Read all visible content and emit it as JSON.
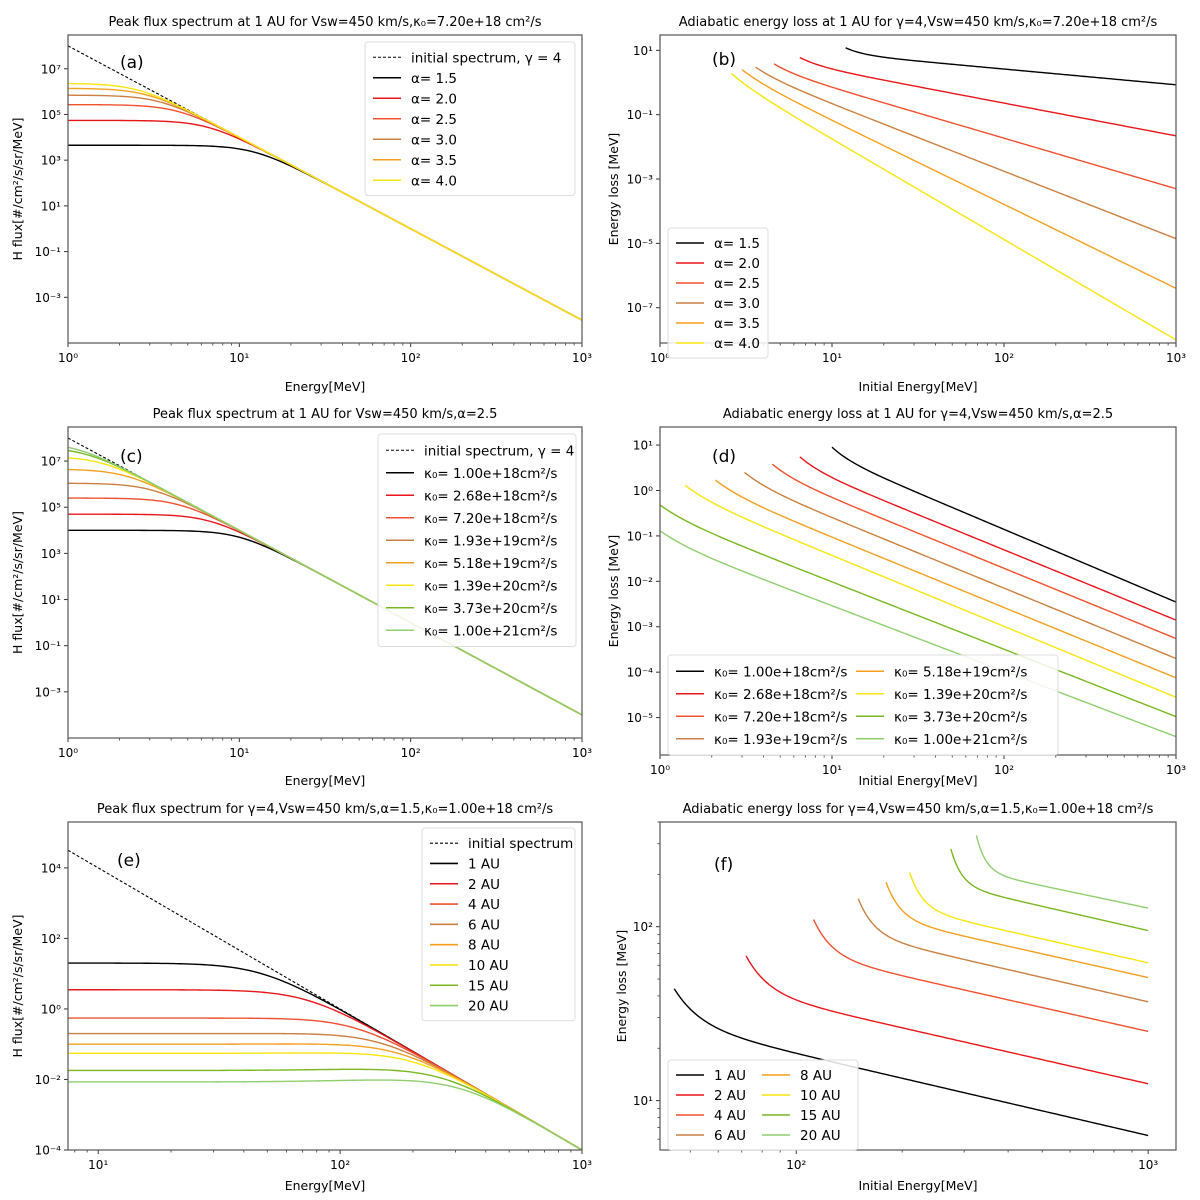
{
  "colors": {
    "initial": "#000000",
    "c1": "#000000",
    "c2": "#e8161a",
    "c3": "#f0512f",
    "c4": "#cc8040",
    "c5": "#f5a020",
    "c6": "#f7e60f",
    "c7": "#79b820",
    "c8": "#8fcf6f"
  },
  "chart_data": [
    {
      "id": "a",
      "type": "line",
      "panel_label": "(a)",
      "title": "Peak flux spectrum at 1 AU for Vsw=450 km/s,κ₀=7.20e+18 cm²/s",
      "xlabel": "Energy[MeV]",
      "ylabel": "H flux[#/cm²/s/sr/MeV]",
      "xscale": "log",
      "yscale": "log",
      "xlim": [
        1,
        1000
      ],
      "ylim": [
        1e-05,
        300000000
      ],
      "xticks": [
        "10⁰",
        "10¹",
        "10²",
        "10³"
      ],
      "yticks": [
        "10⁻³",
        "10⁻¹",
        "10¹",
        "10³",
        "10⁵",
        "10⁷"
      ],
      "legend_position": "upper-right",
      "series": [
        {
          "name": "initial spectrum, γ = 4",
          "style": "dashed",
          "color_key": "initial",
          "kind": "powerlaw",
          "A": 100000000,
          "gamma": 4
        },
        {
          "name": "α= 1.5",
          "color_key": "c1",
          "kind": "flux",
          "plateau": 4500,
          "A": 100000000,
          "gamma": 4
        },
        {
          "name": "α= 2.0",
          "color_key": "c2",
          "kind": "flux",
          "plateau": 55000,
          "A": 100000000,
          "gamma": 4
        },
        {
          "name": "α= 2.5",
          "color_key": "c3",
          "kind": "flux",
          "plateau": 270000,
          "A": 100000000,
          "gamma": 4
        },
        {
          "name": "α= 3.0",
          "color_key": "c4",
          "kind": "flux",
          "plateau": 700000,
          "A": 100000000,
          "gamma": 4
        },
        {
          "name": "α= 3.5",
          "color_key": "c5",
          "kind": "flux",
          "plateau": 1400000,
          "A": 100000000,
          "gamma": 4
        },
        {
          "name": "α= 4.0",
          "color_key": "c6",
          "kind": "flux",
          "plateau": 2300000,
          "A": 100000000,
          "gamma": 4
        }
      ]
    },
    {
      "id": "b",
      "type": "line",
      "panel_label": "(b)",
      "title": "Adiabatic energy loss at 1 AU for γ=4,Vsw=450 km/s,κ₀=7.20e+18 cm²/s",
      "xlabel": "Initial Energy[MeV]",
      "ylabel": "Energy loss [MeV]",
      "xscale": "log",
      "yscale": "log",
      "xlim": [
        1,
        1000
      ],
      "ylim": [
        8e-09,
        30
      ],
      "xticks": [
        "10⁰",
        "10¹",
        "10²",
        "10³"
      ],
      "yticks": [
        "10⁻⁷",
        "10⁻⁵",
        "10⁻³",
        "10⁻¹",
        "10¹"
      ],
      "legend_position": "lower-left",
      "series": [
        {
          "name": "α= 1.5",
          "color_key": "c1",
          "kind": "loss",
          "x0": 12,
          "y0": 12,
          "y_end": 0.85
        },
        {
          "name": "α= 2.0",
          "color_key": "c2",
          "kind": "loss",
          "x0": 6.5,
          "y0": 6,
          "y_end": 0.022
        },
        {
          "name": "α= 2.5",
          "color_key": "c3",
          "kind": "loss",
          "x0": 4.6,
          "y0": 3.8,
          "y_end": 0.0005
        },
        {
          "name": "α= 3.0",
          "color_key": "c4",
          "kind": "loss",
          "x0": 3.6,
          "y0": 3.0,
          "y_end": 1.4e-05
        },
        {
          "name": "α= 3.5",
          "color_key": "c5",
          "kind": "loss",
          "x0": 3.0,
          "y0": 2.5,
          "y_end": 4e-07
        },
        {
          "name": "α= 4.0",
          "color_key": "c6",
          "kind": "loss",
          "x0": 2.6,
          "y0": 1.9,
          "y_end": 1e-08
        }
      ]
    },
    {
      "id": "c",
      "type": "line",
      "panel_label": "(c)",
      "title": "Peak flux spectrum at 1 AU for Vsw=450 km/s,α=2.5",
      "xlabel": "Energy[MeV]",
      "ylabel": "H flux[#/cm²/s/sr/MeV]",
      "xscale": "log",
      "yscale": "log",
      "xlim": [
        1,
        1000
      ],
      "ylim": [
        1e-05,
        300000000
      ],
      "xticks": [
        "10⁰",
        "10¹",
        "10²",
        "10³"
      ],
      "yticks": [
        "10⁻³",
        "10⁻¹",
        "10¹",
        "10³",
        "10⁵",
        "10⁷"
      ],
      "legend_position": "upper-right",
      "series": [
        {
          "name": "initial spectrum, γ = 4",
          "style": "dashed",
          "color_key": "initial",
          "kind": "powerlaw",
          "A": 100000000,
          "gamma": 4
        },
        {
          "name": "κ₀= 1.00e+18cm²/s",
          "color_key": "c1",
          "kind": "flux",
          "plateau": 10000,
          "A": 100000000,
          "gamma": 4
        },
        {
          "name": "κ₀= 2.68e+18cm²/s",
          "color_key": "c2",
          "kind": "flux",
          "plateau": 50000,
          "A": 100000000,
          "gamma": 4
        },
        {
          "name": "κ₀= 7.20e+18cm²/s",
          "color_key": "c3",
          "kind": "flux",
          "plateau": 250000,
          "A": 100000000,
          "gamma": 4
        },
        {
          "name": "κ₀= 1.93e+19cm²/s",
          "color_key": "c4",
          "kind": "flux",
          "plateau": 1100000,
          "A": 100000000,
          "gamma": 4
        },
        {
          "name": "κ₀= 5.18e+19cm²/s",
          "color_key": "c5",
          "kind": "flux",
          "plateau": 4500000,
          "A": 100000000,
          "gamma": 4
        },
        {
          "name": "κ₀= 1.39e+20cm²/s",
          "color_key": "c6",
          "kind": "flux",
          "plateau": 16000000,
          "A": 100000000,
          "gamma": 4
        },
        {
          "name": "κ₀= 3.73e+20cm²/s",
          "color_key": "c7",
          "kind": "flux",
          "plateau": 40000000,
          "A": 100000000,
          "gamma": 4
        },
        {
          "name": "κ₀= 1.00e+21cm²/s",
          "color_key": "c8",
          "kind": "flux",
          "plateau": 65000000,
          "A": 100000000,
          "gamma": 4
        }
      ]
    },
    {
      "id": "d",
      "type": "line",
      "panel_label": "(d)",
      "title": "Adiabatic energy loss at 1 AU for γ=4,Vsw=450 km/s,α=2.5",
      "xlabel": "Initial Energy[MeV]",
      "ylabel": "Energy loss [MeV]",
      "xscale": "log",
      "yscale": "log",
      "xlim": [
        1,
        1000
      ],
      "ylim": [
        1.5e-06,
        25
      ],
      "xticks": [
        "10⁰",
        "10¹",
        "10²",
        "10³"
      ],
      "yticks": [
        "10⁻⁵",
        "10⁻⁴",
        "10⁻³",
        "10⁻²",
        "10⁻¹",
        "10⁰",
        "10¹"
      ],
      "legend_position": "lower-left",
      "legend_columns": 2,
      "series": [
        {
          "name": "κ₀= 1.00e+18cm²/s",
          "color_key": "c1",
          "kind": "loss",
          "x0": 10,
          "y0": 9,
          "y_end": 0.0035
        },
        {
          "name": "κ₀= 2.68e+18cm²/s",
          "color_key": "c2",
          "kind": "loss",
          "x0": 6.5,
          "y0": 5.5,
          "y_end": 0.0014
        },
        {
          "name": "κ₀= 7.20e+18cm²/s",
          "color_key": "c3",
          "kind": "loss",
          "x0": 4.5,
          "y0": 3.8,
          "y_end": 0.00055
        },
        {
          "name": "κ₀= 1.93e+19cm²/s",
          "color_key": "c4",
          "kind": "loss",
          "x0": 3.1,
          "y0": 2.5,
          "y_end": 0.0002
        },
        {
          "name": "κ₀= 5.18e+19cm²/s",
          "color_key": "c5",
          "kind": "loss",
          "x0": 2.1,
          "y0": 1.7,
          "y_end": 7.5e-05
        },
        {
          "name": "κ₀= 1.39e+20cm²/s",
          "color_key": "c6",
          "kind": "loss",
          "x0": 1.4,
          "y0": 1.3,
          "y_end": 2.8e-05
        },
        {
          "name": "κ₀= 3.73e+20cm²/s",
          "color_key": "c7",
          "kind": "loss",
          "x0": 1.0,
          "y0": 0.48,
          "y_end": 1.05e-05
        },
        {
          "name": "κ₀= 1.00e+21cm²/s",
          "color_key": "c8",
          "kind": "loss",
          "x0": 1.0,
          "y0": 0.13,
          "y_end": 3.8e-06
        }
      ]
    },
    {
      "id": "e",
      "type": "line",
      "panel_label": "(e)",
      "title": "Peak flux spectrum for γ=4,Vsw=450 km/s,α=1.5,κ₀=1.00e+18 cm²/s",
      "xlabel": "Energy[MeV]",
      "ylabel": "H flux[#/cm²/s/sr/MeV]",
      "xscale": "log",
      "yscale": "log",
      "xlim": [
        7.5,
        1000
      ],
      "ylim": [
        0.0001,
        200000
      ],
      "xticks": [
        "10¹",
        "10²",
        "10³"
      ],
      "yticks": [
        "10⁻⁴",
        "10⁻²",
        "10⁰",
        "10²",
        "10⁴"
      ],
      "legend_position": "upper-right",
      "series": [
        {
          "name": "initial spectrum",
          "style": "dashed",
          "color_key": "initial",
          "kind": "powerlaw",
          "A": 100000000,
          "gamma": 4
        },
        {
          "name": "1 AU",
          "color_key": "c1",
          "kind": "flux",
          "plateau": 20,
          "A": 100000000,
          "gamma": 4
        },
        {
          "name": "2 AU",
          "color_key": "c2",
          "kind": "flux",
          "plateau": 3.5,
          "A": 100000000,
          "gamma": 4
        },
        {
          "name": "4 AU",
          "color_key": "c3",
          "kind": "flux",
          "plateau": 0.55,
          "A": 100000000,
          "gamma": 4
        },
        {
          "name": "6 AU",
          "color_key": "c4",
          "kind": "flux",
          "plateau": 0.2,
          "A": 100000000,
          "gamma": 4
        },
        {
          "name": "8 AU",
          "color_key": "c5",
          "kind": "flux",
          "plateau": 0.1,
          "A": 100000000,
          "gamma": 4
        },
        {
          "name": "10 AU",
          "color_key": "c6",
          "kind": "flux",
          "plateau": 0.055,
          "A": 100000000,
          "gamma": 4
        },
        {
          "name": "15 AU",
          "color_key": "c7",
          "kind": "flux",
          "plateau": 0.018,
          "A": 100000000,
          "gamma": 4
        },
        {
          "name": "20 AU",
          "color_key": "c8",
          "kind": "flux",
          "plateau": 0.0085,
          "A": 100000000,
          "gamma": 4
        }
      ]
    },
    {
      "id": "f",
      "type": "line",
      "panel_label": "(f)",
      "title": "Adiabatic energy loss for γ=4,Vsw=450 km/s,α=1.5,κ₀=1.00e+18 cm²/s",
      "xlabel": "Initial Energy[MeV]",
      "ylabel": "Energy loss [MeV]",
      "xscale": "log",
      "yscale": "log",
      "xlim": [
        41,
        1200
      ],
      "ylim": [
        5.2,
        400
      ],
      "xticks": [
        "10²",
        "10³"
      ],
      "yticks": [
        "10¹",
        "10²"
      ],
      "legend_position": "lower-left",
      "legend_columns": 2,
      "series": [
        {
          "name": "1 AU",
          "color_key": "c1",
          "kind": "loss",
          "x0": 45,
          "y0": 44,
          "y_end": 6.3
        },
        {
          "name": "2 AU",
          "color_key": "c2",
          "kind": "loss",
          "x0": 72,
          "y0": 68,
          "y_end": 12.5
        },
        {
          "name": "4 AU",
          "color_key": "c3",
          "kind": "loss",
          "x0": 112,
          "y0": 110,
          "y_end": 25
        },
        {
          "name": "6 AU",
          "color_key": "c4",
          "kind": "loss",
          "x0": 150,
          "y0": 145,
          "y_end": 37
        },
        {
          "name": "8 AU",
          "color_key": "c5",
          "kind": "loss",
          "x0": 180,
          "y0": 180,
          "y_end": 51
        },
        {
          "name": "10 AU",
          "color_key": "c6",
          "kind": "loss",
          "x0": 210,
          "y0": 205,
          "y_end": 62
        },
        {
          "name": "15 AU",
          "color_key": "c7",
          "kind": "loss",
          "x0": 275,
          "y0": 280,
          "y_end": 95
        },
        {
          "name": "20 AU",
          "color_key": "c8",
          "kind": "loss",
          "x0": 325,
          "y0": 335,
          "y_end": 128
        }
      ]
    }
  ]
}
